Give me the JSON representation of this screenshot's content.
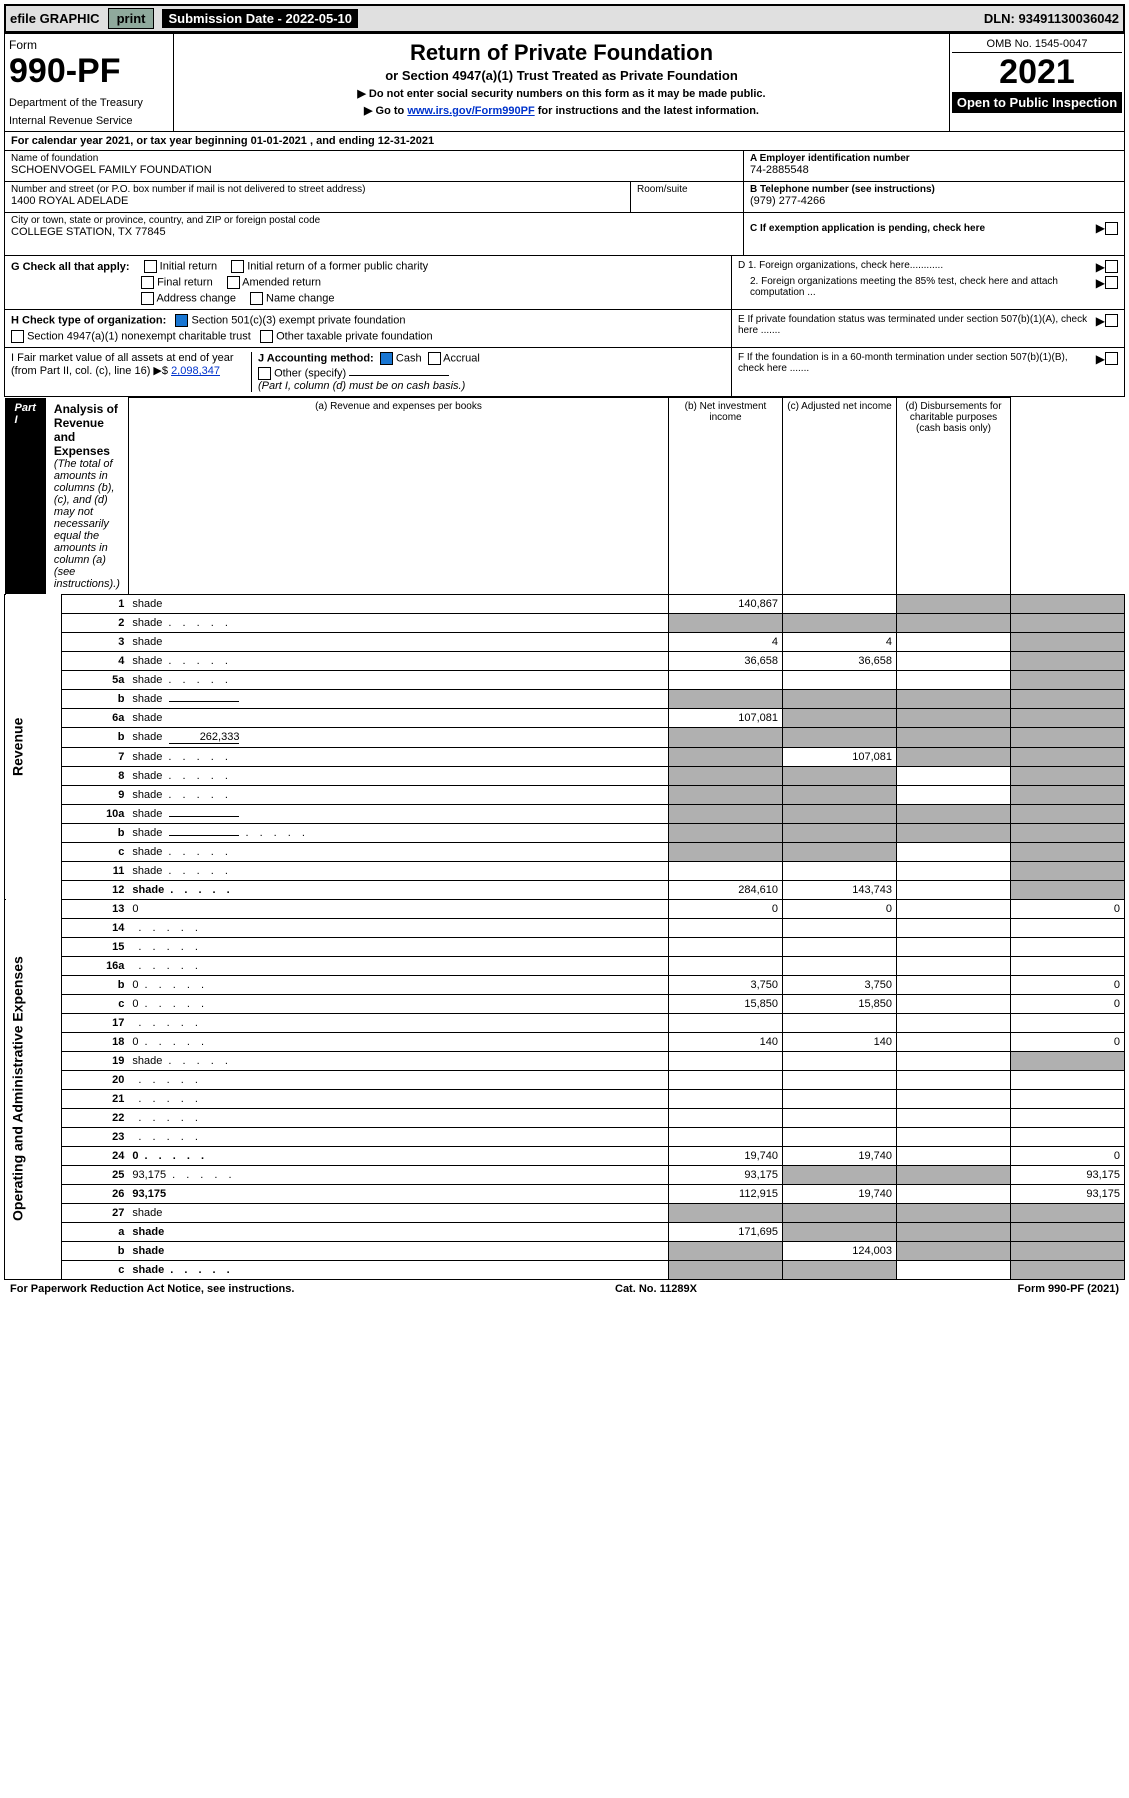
{
  "topbar": {
    "efile": "efile GRAPHIC",
    "print": "print",
    "submission": "Submission Date - 2022-05-10",
    "dln": "DLN: 93491130036042"
  },
  "header": {
    "form_label": "Form",
    "form_number": "990-PF",
    "dept1": "Department of the Treasury",
    "dept2": "Internal Revenue Service",
    "title": "Return of Private Foundation",
    "subtitle": "or Section 4947(a)(1) Trust Treated as Private Foundation",
    "instr1": "▶ Do not enter social security numbers on this form as it may be made public.",
    "instr2_pre": "▶ Go to ",
    "instr2_link": "www.irs.gov/Form990PF",
    "instr2_post": " for instructions and the latest information.",
    "omb": "OMB No. 1545-0047",
    "year": "2021",
    "open": "Open to Public Inspection"
  },
  "cal_year": "For calendar year 2021, or tax year beginning 01-01-2021             , and ending 12-31-2021",
  "foundation": {
    "name_label": "Name of foundation",
    "name": "SCHOENVOGEL FAMILY FOUNDATION",
    "addr_label": "Number and street (or P.O. box number if mail is not delivered to street address)",
    "addr": "1400 ROYAL ADELADE",
    "room_label": "Room/suite",
    "city_label": "City or town, state or province, country, and ZIP or foreign postal code",
    "city": "COLLEGE STATION, TX  77845",
    "ein_label": "A Employer identification number",
    "ein": "74-2885548",
    "phone_label": "B Telephone number (see instructions)",
    "phone": "(979) 277-4266",
    "c_label": "C If exemption application is pending, check here",
    "d1": "D 1. Foreign organizations, check here............",
    "d2": "2. Foreign organizations meeting the 85% test, check here and attach computation ...",
    "e": "E If private foundation status was terminated under section 507(b)(1)(A), check here .......",
    "f": "F If the foundation is in a 60-month termination under section 507(b)(1)(B), check here .......",
    "g_label": "G Check all that apply:",
    "g_opts": [
      "Initial return",
      "Initial return of a former public charity",
      "Final return",
      "Amended return",
      "Address change",
      "Name change"
    ],
    "h_label": "H Check type of organization:",
    "h_opts": [
      "Section 501(c)(3) exempt private foundation",
      "Section 4947(a)(1) nonexempt charitable trust",
      "Other taxable private foundation"
    ],
    "i_label": "I Fair market value of all assets at end of year (from Part II, col. (c), line 16) ▶$ ",
    "i_val": "2,098,347",
    "j_label": "J Accounting method:",
    "j_cash": "Cash",
    "j_accrual": "Accrual",
    "j_other": "Other (specify)",
    "j_note": "(Part I, column (d) must be on cash basis.)"
  },
  "part1": {
    "tag": "Part I",
    "title": "Analysis of Revenue and Expenses",
    "title_note": "(The total of amounts in columns (b), (c), and (d) may not necessarily equal the amounts in column (a) (see instructions).)",
    "cols": {
      "a": "(a) Revenue and expenses per books",
      "b": "(b) Net investment income",
      "c": "(c) Adjusted net income",
      "d": "(d) Disbursements for charitable purposes (cash basis only)"
    }
  },
  "side_labels": {
    "revenue": "Revenue",
    "expenses": "Operating and Administrative Expenses"
  },
  "rows": [
    {
      "n": "1",
      "d": "shade",
      "a": "140,867",
      "b": "",
      "c": "shade"
    },
    {
      "n": "2",
      "d": "shade",
      "a": "shade",
      "b": "shade",
      "c": "shade",
      "dots": true
    },
    {
      "n": "3",
      "d": "shade",
      "a": "4",
      "b": "4",
      "c": ""
    },
    {
      "n": "4",
      "d": "shade",
      "a": "36,658",
      "b": "36,658",
      "c": "",
      "dots": true
    },
    {
      "n": "5a",
      "d": "shade",
      "a": "",
      "b": "",
      "c": "",
      "dots": true
    },
    {
      "n": "b",
      "d": "shade",
      "a": "shade",
      "b": "shade",
      "c": "shade",
      "inline": true
    },
    {
      "n": "6a",
      "d": "shade",
      "a": "107,081",
      "b": "shade",
      "c": "shade"
    },
    {
      "n": "b",
      "d": "shade",
      "inline_val": "262,333",
      "a": "shade",
      "b": "shade",
      "c": "shade"
    },
    {
      "n": "7",
      "d": "shade",
      "a": "shade",
      "b": "107,081",
      "c": "shade",
      "dots": true
    },
    {
      "n": "8",
      "d": "shade",
      "a": "shade",
      "b": "shade",
      "c": "",
      "dots": true
    },
    {
      "n": "9",
      "d": "shade",
      "a": "shade",
      "b": "shade",
      "c": "",
      "dots": true
    },
    {
      "n": "10a",
      "d": "shade",
      "a": "shade",
      "b": "shade",
      "c": "shade",
      "inline": true
    },
    {
      "n": "b",
      "d": "shade",
      "a": "shade",
      "b": "shade",
      "c": "shade",
      "inline": true,
      "dots": true
    },
    {
      "n": "c",
      "d": "shade",
      "a": "shade",
      "b": "shade",
      "c": "",
      "dots": true
    },
    {
      "n": "11",
      "d": "shade",
      "a": "",
      "b": "",
      "c": "",
      "dots": true
    },
    {
      "n": "12",
      "d": "shade",
      "a": "284,610",
      "b": "143,743",
      "c": "",
      "bold": true,
      "dots": true
    },
    {
      "n": "13",
      "d": "0",
      "a": "0",
      "b": "0",
      "c": ""
    },
    {
      "n": "14",
      "d": "",
      "a": "",
      "b": "",
      "c": "",
      "dots": true
    },
    {
      "n": "15",
      "d": "",
      "a": "",
      "b": "",
      "c": "",
      "dots": true
    },
    {
      "n": "16a",
      "d": "",
      "a": "",
      "b": "",
      "c": "",
      "dots": true
    },
    {
      "n": "b",
      "d": "0",
      "a": "3,750",
      "b": "3,750",
      "c": "",
      "dots": true
    },
    {
      "n": "c",
      "d": "0",
      "a": "15,850",
      "b": "15,850",
      "c": "",
      "dots": true
    },
    {
      "n": "17",
      "d": "",
      "a": "",
      "b": "",
      "c": "",
      "dots": true
    },
    {
      "n": "18",
      "d": "0",
      "a": "140",
      "b": "140",
      "c": "",
      "dots": true
    },
    {
      "n": "19",
      "d": "shade",
      "a": "",
      "b": "",
      "c": "",
      "dots": true
    },
    {
      "n": "20",
      "d": "",
      "a": "",
      "b": "",
      "c": "",
      "dots": true
    },
    {
      "n": "21",
      "d": "",
      "a": "",
      "b": "",
      "c": "",
      "dots": true
    },
    {
      "n": "22",
      "d": "",
      "a": "",
      "b": "",
      "c": "",
      "dots": true
    },
    {
      "n": "23",
      "d": "",
      "a": "",
      "b": "",
      "c": "",
      "dots": true
    },
    {
      "n": "24",
      "d": "0",
      "a": "19,740",
      "b": "19,740",
      "c": "",
      "bold": true,
      "dots": true
    },
    {
      "n": "25",
      "d": "93,175",
      "a": "93,175",
      "b": "shade",
      "c": "shade",
      "dots": true
    },
    {
      "n": "26",
      "d": "93,175",
      "a": "112,915",
      "b": "19,740",
      "c": "",
      "bold": true
    },
    {
      "n": "27",
      "d": "shade",
      "a": "shade",
      "b": "shade",
      "c": "shade"
    },
    {
      "n": "a",
      "d": "shade",
      "a": "171,695",
      "b": "shade",
      "c": "shade",
      "bold": true
    },
    {
      "n": "b",
      "d": "shade",
      "a": "shade",
      "b": "124,003",
      "c": "shade",
      "bold": true
    },
    {
      "n": "c",
      "d": "shade",
      "a": "shade",
      "b": "shade",
      "c": "",
      "bold": true,
      "dots": true
    }
  ],
  "footer": {
    "left": "For Paperwork Reduction Act Notice, see instructions.",
    "mid": "Cat. No. 11289X",
    "right": "Form 990-PF (2021)"
  }
}
